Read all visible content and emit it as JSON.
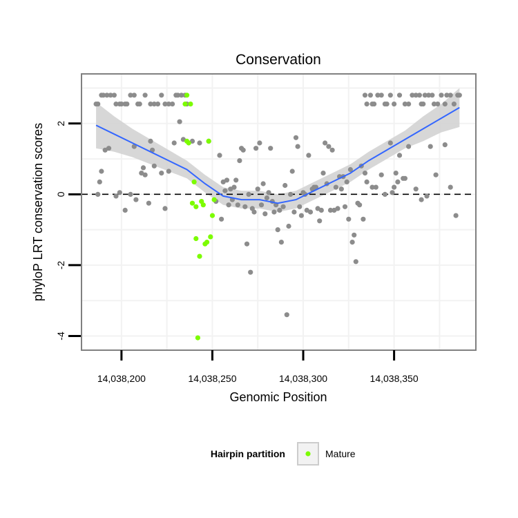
{
  "chart_data": {
    "type": "scatter",
    "title": "Conservation",
    "xlabel": "Genomic Position",
    "ylabel": "phyloP LRT conservation scores",
    "xlim": [
      14038178,
      14038395
    ],
    "ylim": [
      -4.4,
      3.4
    ],
    "x_ticks": [
      14038200,
      14038250,
      14038300,
      14038350
    ],
    "x_tick_labels": [
      "14,038,200",
      "14,038,250",
      "14,038,300",
      "14,038,350"
    ],
    "y_ticks": [
      -4,
      -2,
      0,
      2
    ],
    "y_tick_labels": [
      "-4",
      "-2",
      "0",
      "2"
    ],
    "reference_line": {
      "y": 0,
      "style": "dashed"
    },
    "legend": {
      "title": "Hairpin partition",
      "entries": [
        {
          "label": "Mature",
          "color": "#7cfc00"
        }
      ],
      "position": "bottom"
    },
    "colors": {
      "other": "#8c8c8c",
      "mature": "#7cfc00",
      "smooth": "#3366ff",
      "band": "#d3d3d3",
      "dash": "#000000",
      "panel_border": "#808080"
    },
    "series": [
      {
        "name": "Other",
        "color": "#8c8c8c",
        "points": [
          [
            14038186,
            2.55
          ],
          [
            14038187,
            2.55
          ],
          [
            14038189,
            2.8
          ],
          [
            14038190,
            2.8
          ],
          [
            14038192,
            2.8
          ],
          [
            14038194,
            2.8
          ],
          [
            14038196,
            2.8
          ],
          [
            14038197,
            2.55
          ],
          [
            14038199,
            2.55
          ],
          [
            14038200,
            2.55
          ],
          [
            14038202,
            2.55
          ],
          [
            14038203,
            2.55
          ],
          [
            14038205,
            2.8
          ],
          [
            14038207,
            2.8
          ],
          [
            14038209,
            2.55
          ],
          [
            14038210,
            2.55
          ],
          [
            14038213,
            2.8
          ],
          [
            14038216,
            2.55
          ],
          [
            14038218,
            2.55
          ],
          [
            14038220,
            2.55
          ],
          [
            14038222,
            2.8
          ],
          [
            14038224,
            2.55
          ],
          [
            14038226,
            2.55
          ],
          [
            14038228,
            2.55
          ],
          [
            14038230,
            2.8
          ],
          [
            14038231,
            2.8
          ],
          [
            14038233,
            2.8
          ],
          [
            14038235,
            2.8
          ],
          [
            14038236,
            2.55
          ],
          [
            14038334,
            2.8
          ],
          [
            14038335,
            2.55
          ],
          [
            14038337,
            2.8
          ],
          [
            14038338,
            2.55
          ],
          [
            14038339,
            2.55
          ],
          [
            14038341,
            2.8
          ],
          [
            14038343,
            2.8
          ],
          [
            14038345,
            2.55
          ],
          [
            14038346,
            2.55
          ],
          [
            14038348,
            2.8
          ],
          [
            14038350,
            2.55
          ],
          [
            14038353,
            2.8
          ],
          [
            14038356,
            2.55
          ],
          [
            14038358,
            2.55
          ],
          [
            14038360,
            2.8
          ],
          [
            14038362,
            2.8
          ],
          [
            14038364,
            2.8
          ],
          [
            14038365,
            2.55
          ],
          [
            14038366,
            2.55
          ],
          [
            14038367,
            2.8
          ],
          [
            14038369,
            2.8
          ],
          [
            14038371,
            2.8
          ],
          [
            14038372,
            2.55
          ],
          [
            14038374,
            2.55
          ],
          [
            14038376,
            2.8
          ],
          [
            14038378,
            2.55
          ],
          [
            14038379,
            2.8
          ],
          [
            14038381,
            2.8
          ],
          [
            14038383,
            2.55
          ],
          [
            14038385,
            2.8
          ],
          [
            14038386,
            2.8
          ],
          [
            14038187,
            0.0
          ],
          [
            14038188,
            0.35
          ],
          [
            14038189,
            0.65
          ],
          [
            14038191,
            1.25
          ],
          [
            14038193,
            1.3
          ],
          [
            14038197,
            -0.05
          ],
          [
            14038199,
            0.05
          ],
          [
            14038202,
            -0.45
          ],
          [
            14038205,
            0.0
          ],
          [
            14038207,
            1.35
          ],
          [
            14038208,
            -0.15
          ],
          [
            14038211,
            0.6
          ],
          [
            14038212,
            0.75
          ],
          [
            14038213,
            0.55
          ],
          [
            14038215,
            -0.25
          ],
          [
            14038216,
            1.5
          ],
          [
            14038217,
            1.25
          ],
          [
            14038218,
            0.8
          ],
          [
            14038222,
            0.6
          ],
          [
            14038224,
            -0.4
          ],
          [
            14038226,
            0.65
          ],
          [
            14038229,
            1.45
          ],
          [
            14038232,
            2.05
          ],
          [
            14038234,
            1.55
          ],
          [
            14038239,
            1.5
          ],
          [
            14038243,
            1.45
          ],
          [
            14038248,
            1.5
          ],
          [
            14038252,
            -0.2
          ],
          [
            14038254,
            1.1
          ],
          [
            14038255,
            -0.7
          ],
          [
            14038256,
            0.35
          ],
          [
            14038257,
            0.1
          ],
          [
            14038258,
            0.4
          ],
          [
            14038259,
            -0.3
          ],
          [
            14038260,
            0.15
          ],
          [
            14038261,
            -0.15
          ],
          [
            14038262,
            0.2
          ],
          [
            14038263,
            0.4
          ],
          [
            14038264,
            -0.3
          ],
          [
            14038265,
            0.95
          ],
          [
            14038266,
            1.3
          ],
          [
            14038267,
            1.25
          ],
          [
            14038268,
            -0.35
          ],
          [
            14038269,
            -1.4
          ],
          [
            14038270,
            0.0
          ],
          [
            14038271,
            -2.2
          ],
          [
            14038272,
            -0.4
          ],
          [
            14038273,
            -0.5
          ],
          [
            14038274,
            1.3
          ],
          [
            14038275,
            0.15
          ],
          [
            14038276,
            1.45
          ],
          [
            14038277,
            -0.3
          ],
          [
            14038278,
            0.3
          ],
          [
            14038279,
            -0.55
          ],
          [
            14038280,
            -0.1
          ],
          [
            14038281,
            0.05
          ],
          [
            14038282,
            1.3
          ],
          [
            14038283,
            -0.2
          ],
          [
            14038284,
            -0.5
          ],
          [
            14038285,
            -0.3
          ],
          [
            14038286,
            -1.0
          ],
          [
            14038287,
            -0.45
          ],
          [
            14038288,
            -1.35
          ],
          [
            14038289,
            -0.35
          ],
          [
            14038290,
            0.25
          ],
          [
            14038291,
            -3.4
          ],
          [
            14038292,
            -0.9
          ],
          [
            14038293,
            0.0
          ],
          [
            14038294,
            0.65
          ],
          [
            14038295,
            -0.5
          ],
          [
            14038296,
            1.6
          ],
          [
            14038297,
            1.35
          ],
          [
            14038298,
            -0.35
          ],
          [
            14038299,
            -0.6
          ],
          [
            14038300,
            0.05
          ],
          [
            14038301,
            0.0
          ],
          [
            14038302,
            -0.45
          ],
          [
            14038303,
            1.1
          ],
          [
            14038304,
            -0.5
          ],
          [
            14038305,
            0.15
          ],
          [
            14038306,
            0.2
          ],
          [
            14038307,
            0.2
          ],
          [
            14038308,
            -0.4
          ],
          [
            14038309,
            -0.75
          ],
          [
            14038310,
            -0.45
          ],
          [
            14038311,
            0.6
          ],
          [
            14038312,
            1.45
          ],
          [
            14038313,
            0.3
          ],
          [
            14038314,
            1.35
          ],
          [
            14038315,
            -0.45
          ],
          [
            14038316,
            1.25
          ],
          [
            14038317,
            -0.45
          ],
          [
            14038318,
            0.2
          ],
          [
            14038319,
            -0.4
          ],
          [
            14038320,
            0.5
          ],
          [
            14038321,
            0.15
          ],
          [
            14038322,
            0.5
          ],
          [
            14038323,
            -0.35
          ],
          [
            14038324,
            0.35
          ],
          [
            14038325,
            -0.7
          ],
          [
            14038326,
            0.7
          ],
          [
            14038327,
            -1.35
          ],
          [
            14038328,
            -1.15
          ],
          [
            14038329,
            -1.9
          ],
          [
            14038330,
            -0.25
          ],
          [
            14038331,
            -0.3
          ],
          [
            14038332,
            0.8
          ],
          [
            14038333,
            -0.7
          ],
          [
            14038334,
            0.6
          ],
          [
            14038335,
            0.35
          ],
          [
            14038338,
            0.2
          ],
          [
            14038340,
            0.2
          ],
          [
            14038343,
            0.55
          ],
          [
            14038345,
            0.0
          ],
          [
            14038348,
            1.45
          ],
          [
            14038349,
            0.05
          ],
          [
            14038350,
            0.2
          ],
          [
            14038351,
            0.6
          ],
          [
            14038352,
            0.35
          ],
          [
            14038353,
            1.1
          ],
          [
            14038355,
            0.45
          ],
          [
            14038356,
            0.45
          ],
          [
            14038358,
            1.35
          ],
          [
            14038362,
            0.15
          ],
          [
            14038365,
            -0.15
          ],
          [
            14038368,
            -0.05
          ],
          [
            14038370,
            1.35
          ],
          [
            14038373,
            0.55
          ],
          [
            14038378,
            1.4
          ],
          [
            14038381,
            0.2
          ],
          [
            14038384,
            -0.6
          ]
        ]
      },
      {
        "name": "Mature",
        "color": "#7cfc00",
        "points": [
          [
            14038235,
            2.55
          ],
          [
            14038236,
            2.8
          ],
          [
            14038238,
            2.55
          ],
          [
            14038236,
            1.5
          ],
          [
            14038237,
            1.45
          ],
          [
            14038239,
            -0.25
          ],
          [
            14038240,
            0.35
          ],
          [
            14038241,
            -1.25
          ],
          [
            14038241,
            -0.35
          ],
          [
            14038242,
            -4.05
          ],
          [
            14038243,
            -1.75
          ],
          [
            14038244,
            -0.2
          ],
          [
            14038245,
            -0.3
          ],
          [
            14038246,
            -1.4
          ],
          [
            14038247,
            -1.35
          ],
          [
            14038248,
            1.5
          ],
          [
            14038249,
            -1.2
          ],
          [
            14038250,
            -0.6
          ],
          [
            14038251,
            -0.15
          ]
        ]
      }
    ],
    "smooth": {
      "x": [
        14038186,
        14038196,
        14038206,
        14038216,
        14038226,
        14038236,
        14038246,
        14038256,
        14038266,
        14038276,
        14038286,
        14038296,
        14038306,
        14038316,
        14038326,
        14038336,
        14038346,
        14038356,
        14038366,
        14038376,
        14038386
      ],
      "y": [
        1.95,
        1.7,
        1.45,
        1.2,
        0.95,
        0.7,
        0.3,
        -0.05,
        -0.15,
        -0.15,
        -0.25,
        -0.15,
        0.1,
        0.35,
        0.6,
        0.95,
        1.25,
        1.55,
        1.85,
        2.15,
        2.45
      ],
      "lo": [
        1.3,
        1.2,
        1.05,
        0.85,
        0.65,
        0.45,
        0.05,
        -0.3,
        -0.4,
        -0.4,
        -0.5,
        -0.4,
        -0.15,
        0.1,
        0.35,
        0.7,
        1.0,
        1.3,
        1.5,
        1.75,
        1.9
      ],
      "hi": [
        2.6,
        2.2,
        1.85,
        1.55,
        1.25,
        0.95,
        0.55,
        0.2,
        0.1,
        0.1,
        0.0,
        0.1,
        0.35,
        0.6,
        0.85,
        1.2,
        1.5,
        1.8,
        2.2,
        2.55,
        3.0
      ]
    }
  }
}
